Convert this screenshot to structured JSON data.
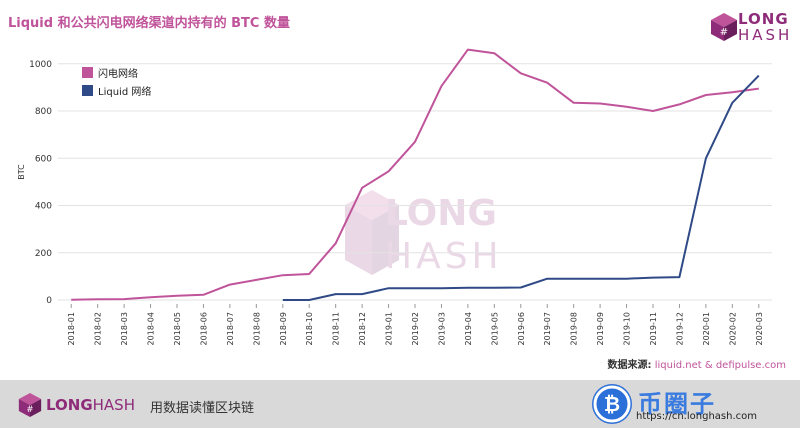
{
  "title": "Liquid 和公共闪电网络渠道内持有的 BTC 数量",
  "logo": {
    "line1": "LONG",
    "line2": "HASH"
  },
  "source": {
    "label": "数据来源:",
    "value": "liquid.net & defipulse.com"
  },
  "footer": {
    "brand_long": "LONG",
    "brand_hash": "HASH",
    "slogan": "用数据读懂区块链",
    "watermark_text": "币圈子",
    "watermark_url": "https://cn.longhash.com"
  },
  "colors": {
    "accent": "#c0549a",
    "brand": "#8e2c7a",
    "liquid": "#2f4a86",
    "lightning": "#c0549a"
  },
  "chart_data": {
    "type": "line",
    "title": "Liquid 和公共闪电网络渠道内持有的 BTC 数量",
    "xlabel": "",
    "ylabel": "BTC",
    "ylim": [
      0,
      1050
    ],
    "yticks": [
      0,
      200,
      400,
      600,
      800,
      1000
    ],
    "grid": "horizontal",
    "legend_position": "top-left",
    "categories": [
      "2018-01",
      "2018-02",
      "2018-03",
      "2018-04",
      "2018-05",
      "2018-06",
      "2018-07",
      "2018-08",
      "2018-09",
      "2018-10",
      "2018-11",
      "2018-12",
      "2019-01",
      "2019-02",
      "2019-03",
      "2019-04",
      "2019-05",
      "2019-06",
      "2019-07",
      "2019-08",
      "2019-09",
      "2019-10",
      "2019-11",
      "2019-12",
      "2020-01",
      "2020-02",
      "2020-03"
    ],
    "series": [
      {
        "name": "闪电网络",
        "color": "#c0549a",
        "values": [
          1,
          3,
          4,
          12,
          18,
          22,
          65,
          85,
          105,
          110,
          240,
          475,
          545,
          670,
          905,
          1060,
          1045,
          960,
          920,
          835,
          832,
          818,
          800,
          828,
          868,
          880,
          895
        ]
      },
      {
        "name": "Liquid 网络",
        "color": "#2f4a86",
        "values": [
          null,
          null,
          null,
          null,
          null,
          null,
          null,
          null,
          0,
          0,
          25,
          25,
          50,
          50,
          50,
          52,
          52,
          53,
          90,
          90,
          90,
          90,
          95,
          97,
          600,
          835,
          950
        ]
      }
    ]
  }
}
